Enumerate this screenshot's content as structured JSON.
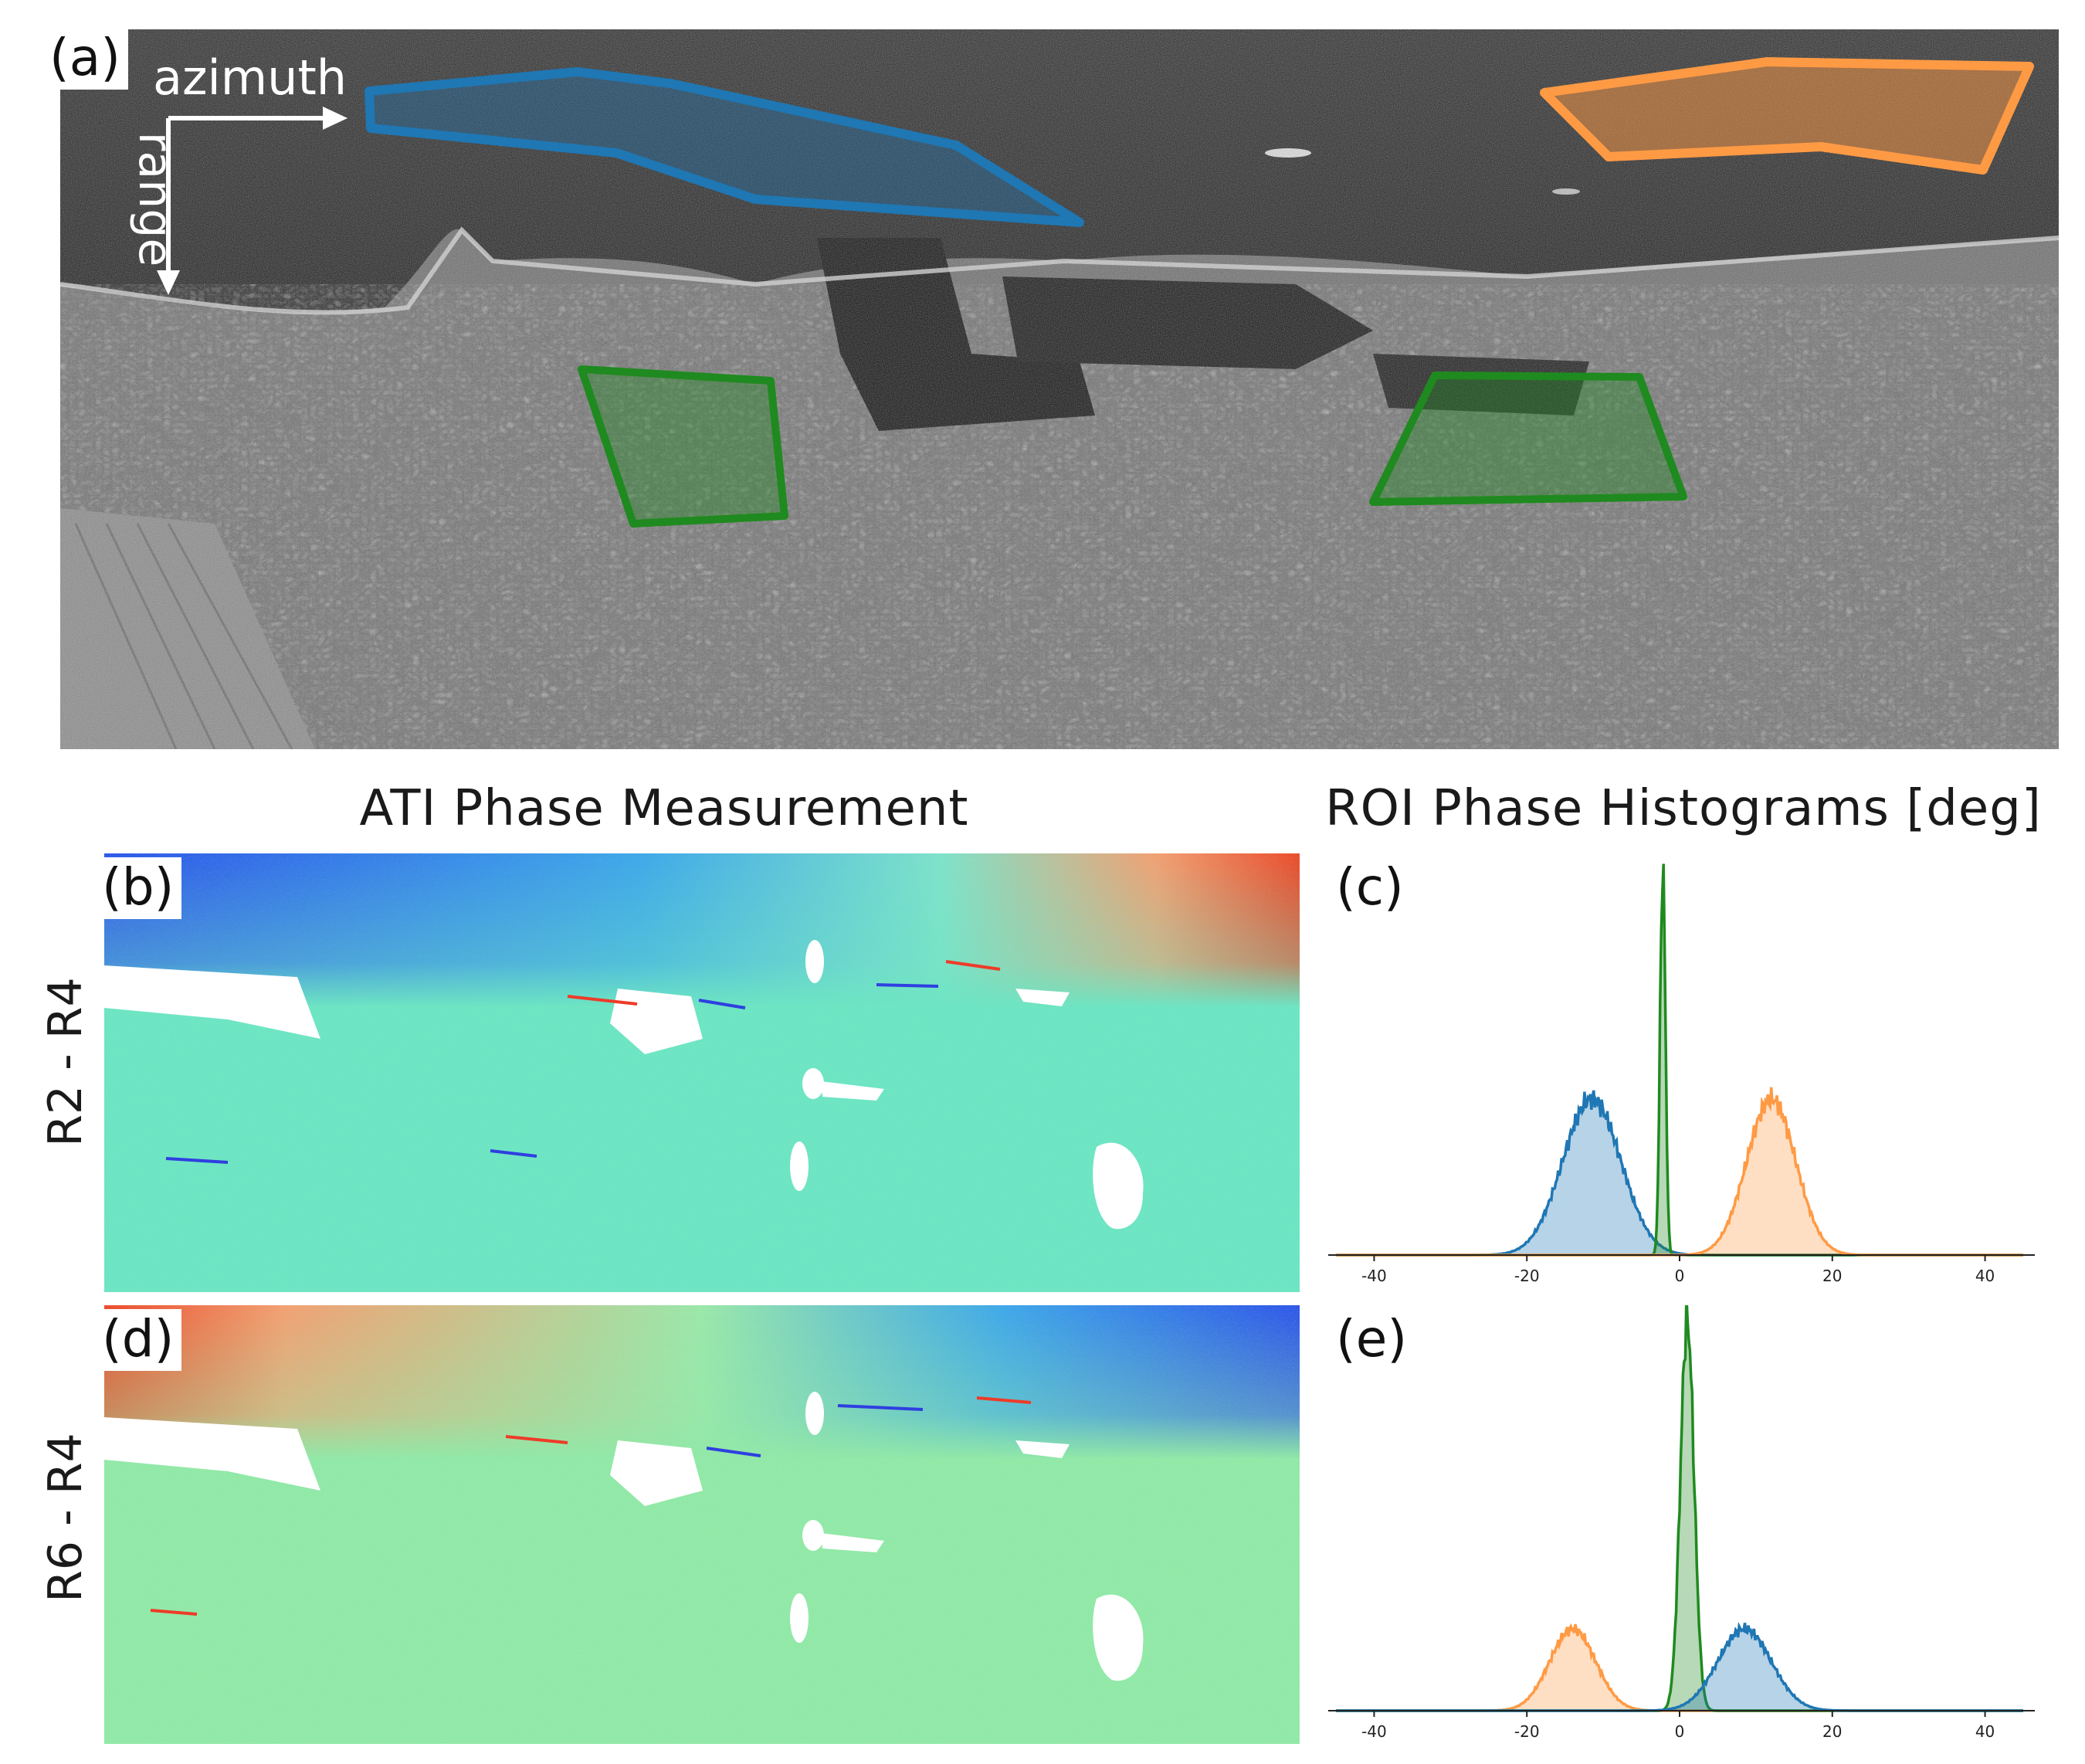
{
  "panel_labels": {
    "a": "(a)",
    "b": "(b)",
    "c": "(c)",
    "d": "(d)",
    "e": "(e)"
  },
  "annotations": {
    "azimuth": "azimuth",
    "range": "range"
  },
  "section_titles": {
    "left": "ATI Phase Measurement",
    "right": "ROI Phase Histograms [deg]"
  },
  "row_labels": {
    "top": "R2 - R4",
    "bottom": "R6 - R4"
  },
  "roi_colors": {
    "blue": "#1f77b4",
    "orange": "#ff9a44",
    "green": "#1f8a1f"
  },
  "chart_data": [
    {
      "type": "area",
      "panel": "(c)",
      "xlim": [
        -45,
        45
      ],
      "xticks": [
        "-40",
        "-20",
        "0",
        "20",
        "40"
      ],
      "xtick_values": [
        -40,
        -20,
        0,
        20,
        40
      ],
      "grid": false,
      "series": [
        {
          "color": "#1f77b4",
          "mean": -11.5,
          "sd": 3.8,
          "peak": 0.4
        },
        {
          "color": "#1f8a1f",
          "mean": -2.2,
          "sd": 0.35,
          "peak": 1.0
        },
        {
          "color": "#ff9a44",
          "mean": 12.0,
          "sd": 3.2,
          "peak": 0.4
        }
      ]
    },
    {
      "type": "area",
      "panel": "(e)",
      "xlim": [
        -45,
        45
      ],
      "xticks": [
        "-40",
        "-20",
        "0",
        "20",
        "40"
      ],
      "xtick_values": [
        -40,
        -20,
        0,
        20,
        40
      ],
      "grid": false,
      "series": [
        {
          "color": "#ff9a44",
          "mean": -14.0,
          "sd": 3.0,
          "peak": 0.21
        },
        {
          "color": "#1f8a1f",
          "mean": 1.0,
          "sd": 0.9,
          "peak": 1.0
        },
        {
          "color": "#1f77b4",
          "mean": 8.5,
          "sd": 3.5,
          "peak": 0.21
        }
      ]
    }
  ]
}
